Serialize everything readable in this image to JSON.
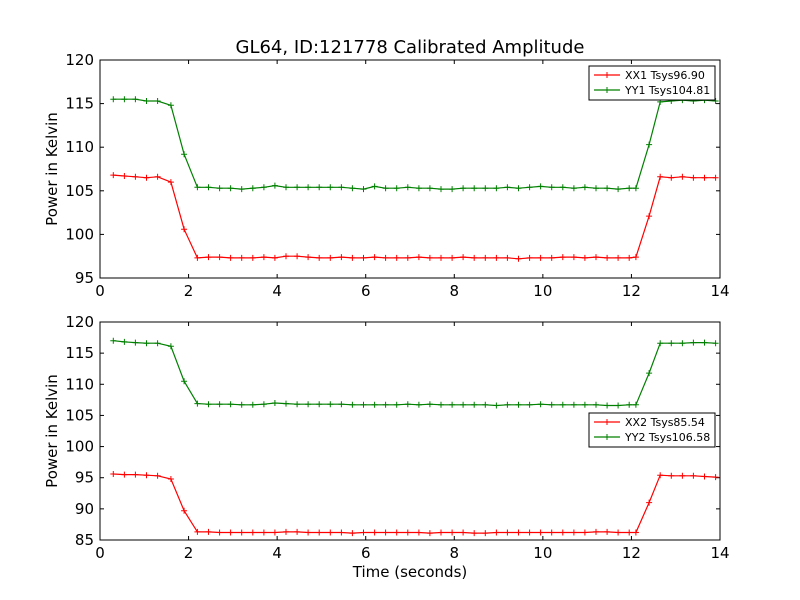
{
  "chart_data": [
    {
      "type": "line",
      "title": "GL64, ID:121778 Calibrated Amplitude",
      "xlabel": "",
      "ylabel": "Power in Kelvin",
      "xlim": [
        0,
        14
      ],
      "ylim": [
        95,
        120
      ],
      "xticks": [
        "0",
        "2",
        "4",
        "6",
        "8",
        "10",
        "12",
        "14"
      ],
      "yticks": [
        "95",
        "100",
        "105",
        "110",
        "115",
        "120"
      ],
      "legend_position": "top-right",
      "x": [
        0.3,
        0.55,
        0.8,
        1.05,
        1.3,
        1.6,
        1.9,
        2.2,
        2.45,
        2.7,
        2.95,
        3.2,
        3.45,
        3.7,
        3.95,
        4.2,
        4.45,
        4.7,
        4.95,
        5.2,
        5.45,
        5.7,
        5.95,
        6.2,
        6.45,
        6.7,
        6.95,
        7.2,
        7.45,
        7.7,
        7.95,
        8.2,
        8.45,
        8.7,
        8.95,
        9.2,
        9.45,
        9.7,
        9.95,
        10.2,
        10.45,
        10.7,
        10.95,
        11.2,
        11.45,
        11.7,
        11.95,
        12.1,
        12.4,
        12.65,
        12.9,
        13.15,
        13.4,
        13.65,
        13.9
      ],
      "series": [
        {
          "name": "XX1 Tsys96.90",
          "color": "#ff0000",
          "values": [
            106.8,
            106.7,
            106.6,
            106.5,
            106.6,
            106.0,
            100.6,
            97.3,
            97.4,
            97.4,
            97.3,
            97.3,
            97.3,
            97.4,
            97.3,
            97.5,
            97.5,
            97.4,
            97.3,
            97.3,
            97.4,
            97.3,
            97.3,
            97.4,
            97.3,
            97.3,
            97.3,
            97.4,
            97.3,
            97.3,
            97.3,
            97.4,
            97.3,
            97.3,
            97.3,
            97.3,
            97.2,
            97.3,
            97.3,
            97.3,
            97.4,
            97.4,
            97.3,
            97.4,
            97.3,
            97.3,
            97.3,
            97.4,
            102.1,
            106.6,
            106.5,
            106.6,
            106.5,
            106.5,
            106.5
          ]
        },
        {
          "name": "YY1 Tsys104.81",
          "color": "#008000",
          "values": [
            115.5,
            115.5,
            115.5,
            115.3,
            115.3,
            114.8,
            109.2,
            105.4,
            105.4,
            105.3,
            105.3,
            105.2,
            105.3,
            105.4,
            105.6,
            105.4,
            105.4,
            105.4,
            105.4,
            105.4,
            105.4,
            105.3,
            105.2,
            105.5,
            105.3,
            105.3,
            105.4,
            105.3,
            105.3,
            105.2,
            105.2,
            105.3,
            105.3,
            105.3,
            105.3,
            105.4,
            105.3,
            105.4,
            105.5,
            105.4,
            105.4,
            105.3,
            105.4,
            105.3,
            105.3,
            105.2,
            105.3,
            105.3,
            110.3,
            115.2,
            115.3,
            115.4,
            115.3,
            115.4,
            115.3
          ]
        }
      ]
    },
    {
      "type": "line",
      "title": "",
      "xlabel": "Time (seconds)",
      "ylabel": "Power in Kelvin",
      "xlim": [
        0,
        14
      ],
      "ylim": [
        85,
        120
      ],
      "xticks": [
        "0",
        "2",
        "4",
        "6",
        "8",
        "10",
        "12",
        "14"
      ],
      "yticks": [
        "85",
        "90",
        "95",
        "100",
        "105",
        "110",
        "115",
        "120"
      ],
      "legend_position": "center-right",
      "x": [
        0.3,
        0.55,
        0.8,
        1.05,
        1.3,
        1.6,
        1.9,
        2.2,
        2.45,
        2.7,
        2.95,
        3.2,
        3.45,
        3.7,
        3.95,
        4.2,
        4.45,
        4.7,
        4.95,
        5.2,
        5.45,
        5.7,
        5.95,
        6.2,
        6.45,
        6.7,
        6.95,
        7.2,
        7.45,
        7.7,
        7.95,
        8.2,
        8.45,
        8.7,
        8.95,
        9.2,
        9.45,
        9.7,
        9.95,
        10.2,
        10.45,
        10.7,
        10.95,
        11.2,
        11.45,
        11.7,
        11.95,
        12.1,
        12.4,
        12.65,
        12.9,
        13.15,
        13.4,
        13.65,
        13.9
      ],
      "series": [
        {
          "name": "XX2 Tsys85.54",
          "color": "#ff0000",
          "values": [
            95.6,
            95.5,
            95.5,
            95.4,
            95.3,
            94.8,
            89.7,
            86.3,
            86.3,
            86.2,
            86.2,
            86.2,
            86.2,
            86.2,
            86.2,
            86.3,
            86.3,
            86.2,
            86.2,
            86.2,
            86.2,
            86.1,
            86.2,
            86.2,
            86.2,
            86.2,
            86.2,
            86.2,
            86.1,
            86.2,
            86.2,
            86.2,
            86.1,
            86.1,
            86.2,
            86.2,
            86.2,
            86.2,
            86.2,
            86.2,
            86.2,
            86.2,
            86.2,
            86.3,
            86.3,
            86.2,
            86.2,
            86.2,
            91.0,
            95.4,
            95.3,
            95.3,
            95.3,
            95.2,
            95.1
          ]
        },
        {
          "name": "YY2 Tsys106.58",
          "color": "#008000",
          "values": [
            117.0,
            116.8,
            116.7,
            116.6,
            116.6,
            116.1,
            110.5,
            106.9,
            106.8,
            106.8,
            106.8,
            106.7,
            106.7,
            106.8,
            107.0,
            106.9,
            106.8,
            106.8,
            106.8,
            106.8,
            106.8,
            106.7,
            106.7,
            106.7,
            106.7,
            106.7,
            106.8,
            106.7,
            106.8,
            106.7,
            106.7,
            106.7,
            106.7,
            106.7,
            106.6,
            106.7,
            106.7,
            106.7,
            106.8,
            106.7,
            106.7,
            106.7,
            106.7,
            106.7,
            106.6,
            106.6,
            106.7,
            106.7,
            111.8,
            116.6,
            116.6,
            116.6,
            116.7,
            116.7,
            116.6
          ]
        }
      ]
    }
  ]
}
